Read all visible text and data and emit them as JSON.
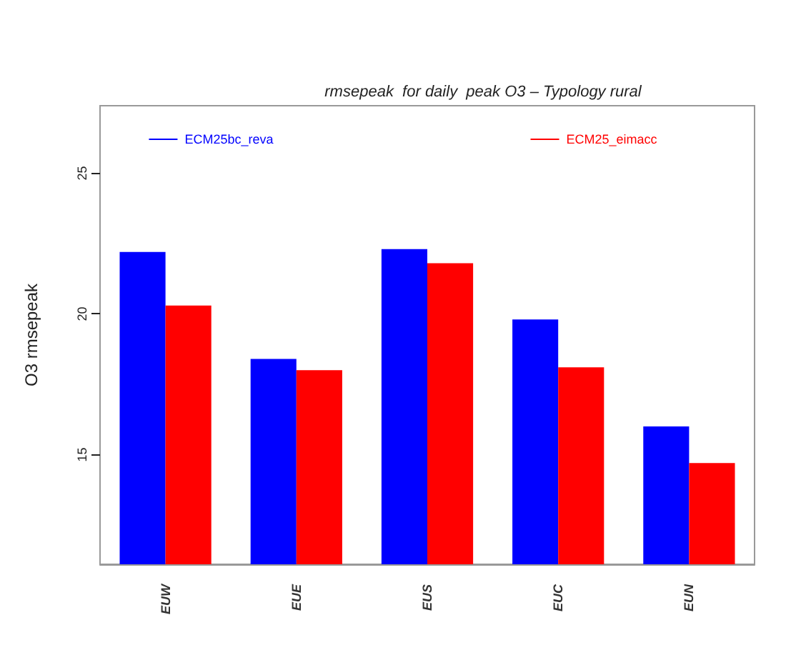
{
  "chart_data": {
    "type": "bar",
    "title": "rmsepeak  for daily  peak O3 – Typology rural",
    "ylabel": "O3 rmsepeak",
    "categories": [
      "EUW",
      "EUE",
      "EUS",
      "EUC",
      "EUN"
    ],
    "series": [
      {
        "name": "ECM25bc_reva",
        "color": "#0000ff",
        "values": [
          22.2,
          18.4,
          22.3,
          19.8,
          16.0
        ]
      },
      {
        "name": "ECM25_eimacc",
        "color": "#ff0000",
        "values": [
          20.3,
          18.0,
          21.8,
          18.1,
          14.7
        ]
      }
    ],
    "ylim": [
      11.1,
      27.4
    ],
    "yticks": [
      15,
      20,
      25
    ],
    "grid": false,
    "legend": "top"
  }
}
